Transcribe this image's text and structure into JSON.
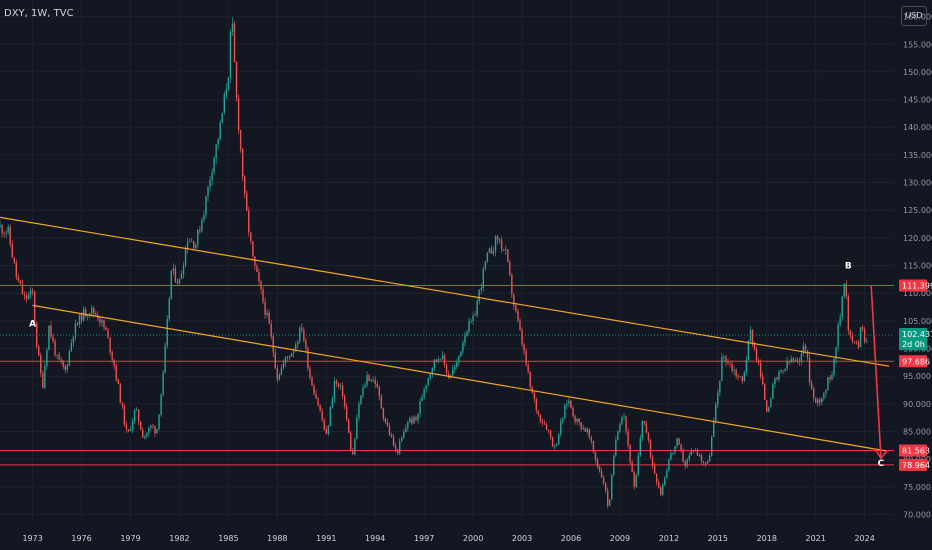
{
  "header": {
    "title": "DXY, 1W, TVC",
    "currency_button": "USD"
  },
  "colors": {
    "background": "#131722",
    "up": "#26a69a",
    "down": "#ef5350",
    "trendline": "#f5a623",
    "hline": "#f23645",
    "grid": "#1e222d"
  },
  "chart_data": {
    "type": "candlestick",
    "symbol": "DXY",
    "interval": "1W",
    "source": "TVC",
    "x_tick_labels": [
      "1973",
      "1976",
      "1979",
      "1982",
      "1985",
      "1988",
      "1991",
      "1994",
      "1997",
      "2000",
      "2003",
      "2006",
      "2009",
      "2012",
      "2015",
      "2018",
      "2021",
      "2024"
    ],
    "y_tick_labels": [
      "70.000",
      "75.000",
      "80.000",
      "85.000",
      "90.000",
      "95.000",
      "100.000",
      "105.000",
      "110.000",
      "115.000",
      "120.000",
      "125.000",
      "130.000",
      "135.000",
      "140.000",
      "145.000",
      "150.000",
      "155.000",
      "160.000"
    ],
    "ylim": [
      69,
      163
    ],
    "xlim": [
      1971.0,
      2025.8
    ],
    "price_path": [
      [
        1971.0,
        122
      ],
      [
        1971.5,
        121
      ],
      [
        1972.0,
        113
      ],
      [
        1972.5,
        109
      ],
      [
        1973.0,
        110
      ],
      [
        1973.2,
        102
      ],
      [
        1973.6,
        93
      ],
      [
        1974.0,
        104
      ],
      [
        1974.5,
        98
      ],
      [
        1975.0,
        96
      ],
      [
        1975.5,
        103
      ],
      [
        1976.0,
        106
      ],
      [
        1976.5,
        107
      ],
      [
        1977.0,
        106
      ],
      [
        1977.5,
        103
      ],
      [
        1978.0,
        97
      ],
      [
        1978.8,
        84
      ],
      [
        1979.3,
        89
      ],
      [
        1979.8,
        84
      ],
      [
        1980.3,
        86
      ],
      [
        1980.6,
        85
      ],
      [
        1981.0,
        95
      ],
      [
        1981.5,
        114
      ],
      [
        1982.0,
        112
      ],
      [
        1982.5,
        120
      ],
      [
        1983.0,
        119
      ],
      [
        1983.5,
        125
      ],
      [
        1984.0,
        133
      ],
      [
        1984.5,
        140
      ],
      [
        1985.0,
        150
      ],
      [
        1985.2,
        160
      ],
      [
        1985.5,
        145
      ],
      [
        1986.0,
        127
      ],
      [
        1986.5,
        116
      ],
      [
        1987.0,
        110
      ],
      [
        1987.5,
        104
      ],
      [
        1988.0,
        95
      ],
      [
        1988.5,
        98
      ],
      [
        1989.0,
        100
      ],
      [
        1989.5,
        104
      ],
      [
        1990.0,
        95
      ],
      [
        1990.5,
        90
      ],
      [
        1991.0,
        84
      ],
      [
        1991.5,
        94
      ],
      [
        1992.0,
        92
      ],
      [
        1992.6,
        80
      ],
      [
        1993.0,
        90
      ],
      [
        1993.5,
        95
      ],
      [
        1994.0,
        94
      ],
      [
        1994.5,
        88
      ],
      [
        1995.3,
        81
      ],
      [
        1995.8,
        85
      ],
      [
        1996.0,
        87
      ],
      [
        1996.5,
        87
      ],
      [
        1997.0,
        93
      ],
      [
        1997.5,
        97
      ],
      [
        1998.0,
        99
      ],
      [
        1998.5,
        95
      ],
      [
        1999.0,
        97
      ],
      [
        1999.5,
        103
      ],
      [
        2000.0,
        105
      ],
      [
        2000.8,
        116
      ],
      [
        2001.5,
        120
      ],
      [
        2002.0,
        117
      ],
      [
        2002.5,
        108
      ],
      [
        2003.0,
        101
      ],
      [
        2003.5,
        93
      ],
      [
        2004.0,
        88
      ],
      [
        2004.5,
        86
      ],
      [
        2005.0,
        82
      ],
      [
        2005.8,
        91
      ],
      [
        2006.3,
        87
      ],
      [
        2007.0,
        85
      ],
      [
        2007.5,
        80
      ],
      [
        2008.0,
        76
      ],
      [
        2008.3,
        71
      ],
      [
        2008.8,
        85
      ],
      [
        2009.2,
        89
      ],
      [
        2009.9,
        74
      ],
      [
        2010.4,
        88
      ],
      [
        2011.0,
        79
      ],
      [
        2011.5,
        74
      ],
      [
        2012.0,
        80
      ],
      [
        2012.5,
        83
      ],
      [
        2013.0,
        79
      ],
      [
        2013.5,
        82
      ],
      [
        2014.0,
        80
      ],
      [
        2014.4,
        79
      ],
      [
        2015.0,
        92
      ],
      [
        2015.3,
        99
      ],
      [
        2016.0,
        96
      ],
      [
        2016.5,
        94
      ],
      [
        2017.0,
        103
      ],
      [
        2017.5,
        97
      ],
      [
        2018.0,
        89
      ],
      [
        2018.5,
        94
      ],
      [
        2019.0,
        96
      ],
      [
        2019.5,
        98
      ],
      [
        2020.0,
        97
      ],
      [
        2020.3,
        102
      ],
      [
        2020.7,
        93
      ],
      [
        2021.0,
        90
      ],
      [
        2021.5,
        92
      ],
      [
        2022.0,
        96
      ],
      [
        2022.5,
        106
      ],
      [
        2022.8,
        114
      ],
      [
        2023.0,
        103
      ],
      [
        2023.3,
        101
      ],
      [
        2023.6,
        100
      ],
      [
        2023.8,
        106
      ],
      [
        2024.0,
        101
      ],
      [
        2024.2,
        103
      ]
    ],
    "trendlines": [
      {
        "from": [
          1971.0,
          123.7
        ],
        "to": [
          2025.5,
          96.8
        ]
      },
      {
        "from": [
          1973.0,
          107.8
        ],
        "to": [
          2025.3,
          81.5
        ]
      }
    ],
    "horizontal_levels": [
      111.399,
      97.686,
      81.563,
      78.964
    ],
    "current_price": 102.437,
    "countdown": "2d 0h",
    "price_tags": [
      {
        "value": 111.399,
        "label": "111.399",
        "color": "#f23645"
      },
      {
        "value": 102.437,
        "label": "102.437",
        "sub": "2d 0h",
        "color": "#089981"
      },
      {
        "value": 97.686,
        "label": "97.686",
        "color": "#f23645"
      },
      {
        "value": 81.563,
        "label": "81.563",
        "color": "#f23645"
      },
      {
        "value": 78.964,
        "label": "78.964",
        "color": "#f23645"
      }
    ],
    "wave_points": [
      {
        "label": "A",
        "x": 1973.0,
        "y": 104
      },
      {
        "label": "B",
        "x": 2023.0,
        "y": 114.5
      },
      {
        "label": "C",
        "x": 2025.0,
        "y": 78.8
      }
    ],
    "projection": {
      "from": [
        2024.4,
        111.4
      ],
      "to": [
        2025.0,
        80.2
      ]
    }
  }
}
